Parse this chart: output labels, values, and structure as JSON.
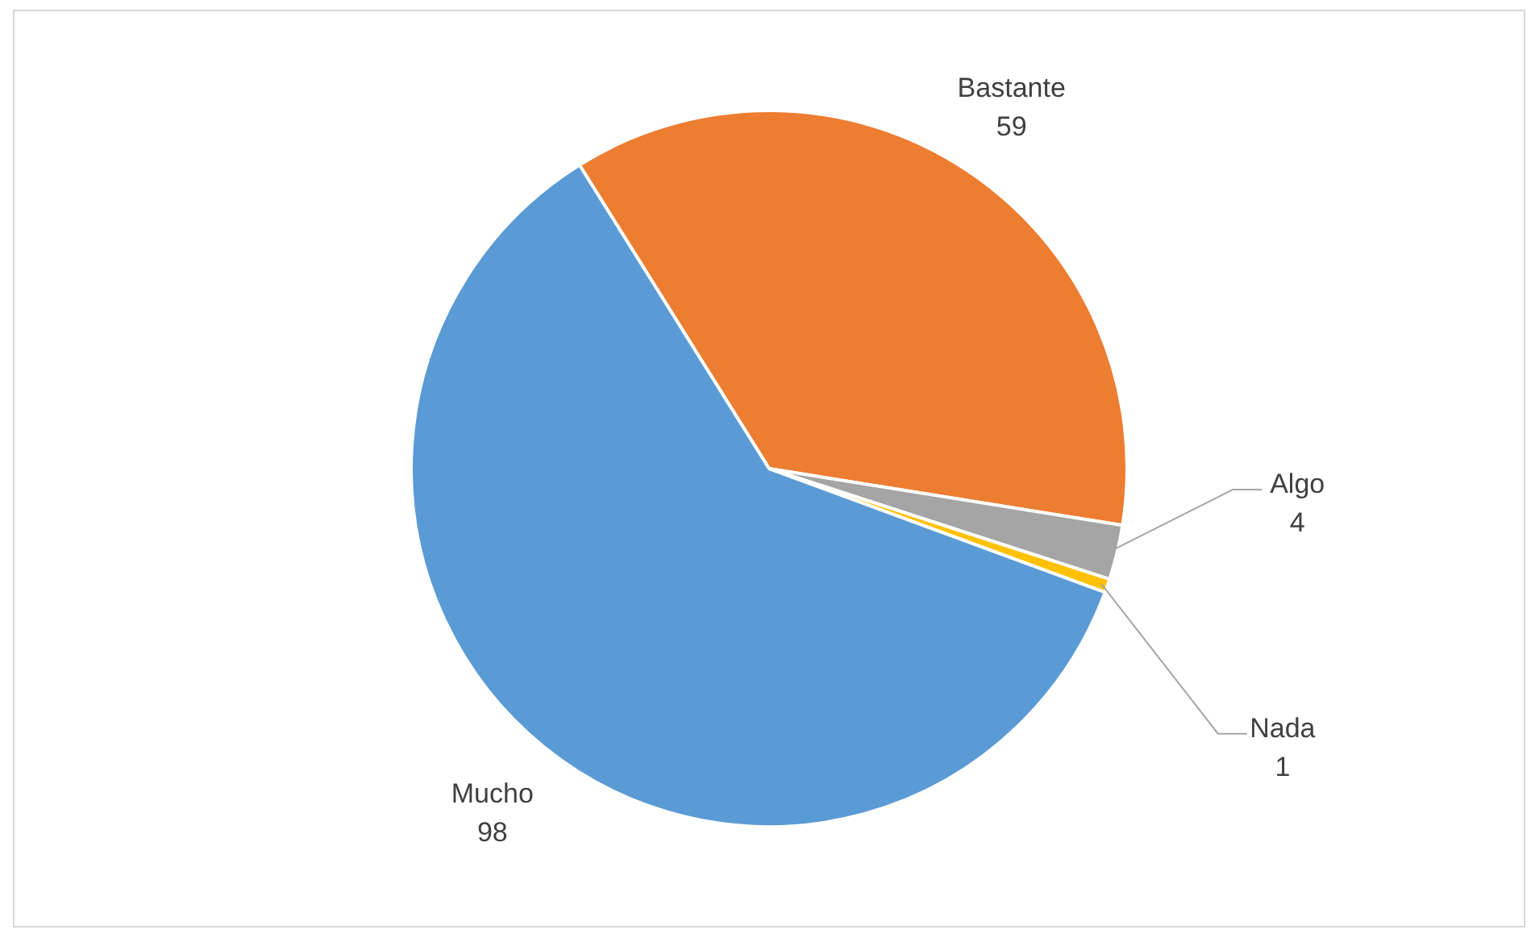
{
  "chart_data": {
    "type": "pie",
    "categories": [
      "Bastante",
      "Algo",
      "Nada",
      "Mucho"
    ],
    "values": [
      59,
      4,
      1,
      98
    ],
    "colors": [
      "#ed7d31",
      "#a5a5a5",
      "#ffc000",
      "#5b9bd5"
    ],
    "data_labels": true,
    "legend": false
  }
}
